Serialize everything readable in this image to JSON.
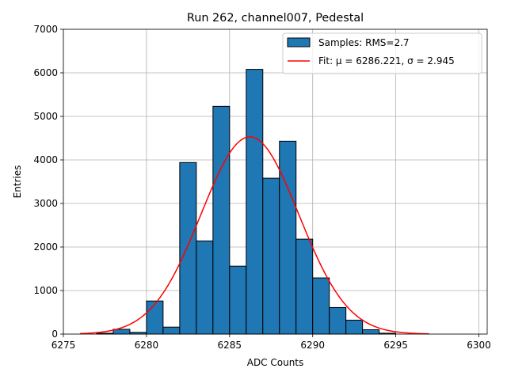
{
  "chart_data": {
    "type": "bar",
    "title": "Run 262, channel007, Pedestal",
    "xlabel": "ADC Counts",
    "ylabel": "Entries",
    "xlim": [
      6275,
      6300.5
    ],
    "ylim": [
      0,
      7000
    ],
    "xticks": [
      6275,
      6280,
      6285,
      6290,
      6295,
      6300
    ],
    "yticks": [
      0,
      1000,
      2000,
      3000,
      4000,
      5000,
      6000,
      7000
    ],
    "grid": true,
    "legend_position": "top-right",
    "bins": [
      {
        "x0": 6276,
        "x1": 6277,
        "value": 0
      },
      {
        "x0": 6277,
        "x1": 6278,
        "value": 20
      },
      {
        "x0": 6278,
        "x1": 6279,
        "value": 110
      },
      {
        "x0": 6279,
        "x1": 6280,
        "value": 40
      },
      {
        "x0": 6280,
        "x1": 6281,
        "value": 760
      },
      {
        "x0": 6281,
        "x1": 6282,
        "value": 160
      },
      {
        "x0": 6282,
        "x1": 6283,
        "value": 3940
      },
      {
        "x0": 6283,
        "x1": 6284,
        "value": 2140
      },
      {
        "x0": 6284,
        "x1": 6285,
        "value": 5230
      },
      {
        "x0": 6285,
        "x1": 6286,
        "value": 1560
      },
      {
        "x0": 6286,
        "x1": 6287,
        "value": 6080
      },
      {
        "x0": 6287,
        "x1": 6288,
        "value": 3580
      },
      {
        "x0": 6288,
        "x1": 6289,
        "value": 4430
      },
      {
        "x0": 6289,
        "x1": 6290,
        "value": 2180
      },
      {
        "x0": 6290,
        "x1": 6291,
        "value": 1290
      },
      {
        "x0": 6291,
        "x1": 6292,
        "value": 610
      },
      {
        "x0": 6292,
        "x1": 6293,
        "value": 320
      },
      {
        "x0": 6293,
        "x1": 6294,
        "value": 100
      },
      {
        "x0": 6294,
        "x1": 6295,
        "value": 20
      },
      {
        "x0": 6295,
        "x1": 6296,
        "value": 0
      }
    ],
    "fit": {
      "mu": 6286.221,
      "sigma": 2.945,
      "amplitude": 4530,
      "x_range": [
        6276,
        6297
      ]
    },
    "series": [
      {
        "name": "Samples: RMS=2.7",
        "kind": "histogram",
        "color": "#1f77b4",
        "edge_color": "#000000"
      },
      {
        "name": "Fit: μ = 6286.221, σ = 2.945",
        "kind": "line",
        "color": "#ff0000"
      }
    ]
  }
}
